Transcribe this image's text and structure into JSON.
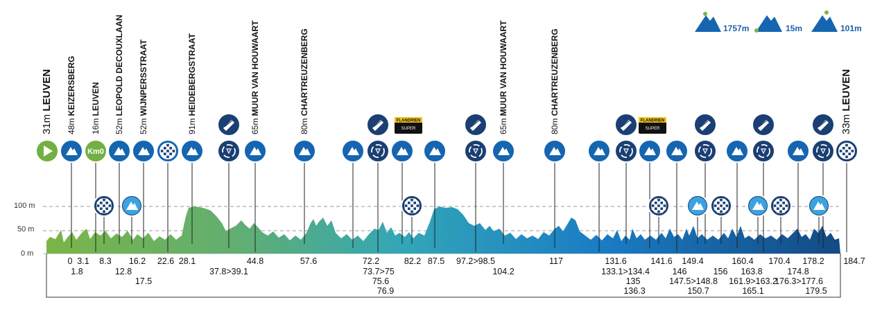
{
  "legend": [
    {
      "label": "1757m",
      "icon": "max-altitude-icon"
    },
    {
      "label": "15m",
      "icon": "min-altitude-icon"
    },
    {
      "label": "101m",
      "icon": "summit-altitude-icon"
    }
  ],
  "y_axis": [
    {
      "label": "100 m",
      "value": 100
    },
    {
      "label": "50 m",
      "value": 50
    },
    {
      "label": "0 m",
      "value": 0
    }
  ],
  "colors": {
    "green": "#72b043",
    "teal": "#2ea6b9",
    "blue": "#1a72c0",
    "navy": "#13436f",
    "icon_blue": "#1565b0",
    "icon_dark": "#1b3f73",
    "light_blue": "#3ba3e0"
  },
  "markers": [
    {
      "icon": "start-icon",
      "km": null,
      "alt": "31m",
      "name": "LEUVEN"
    },
    {
      "icon": "climb-icon",
      "km": 0,
      "alt": "48m",
      "name": "KEIZERSBERG"
    },
    {
      "icon": "km0-icon",
      "km": 1.8,
      "alt": "16m",
      "name": "LEUVEN",
      "badge": "Km0"
    },
    {
      "icon": "climb-icon",
      "km": 3.1,
      "alt": "52m",
      "name": "LEOPOLD DECOUXLAAN"
    },
    {
      "icon": "climb-icon",
      "km": 12.8,
      "alt": "52m",
      "name": "WIJNPERSSTRAAT"
    },
    {
      "icon": "cobbles-icon",
      "km": 17.5
    },
    {
      "icon": "climb-icon",
      "km": 28.1,
      "alt": "91m",
      "name": "HEIDEBERGSTRAAT"
    },
    {
      "icon": "recycle-icon",
      "km": 37.8
    },
    {
      "icon": "climb-icon",
      "km": 44.8,
      "alt": "65m",
      "name": "MUUR VAN HOUWAART"
    },
    {
      "icon": "climb-icon",
      "km": 57.6,
      "alt": "80m",
      "name": "CHARTREUZENBERG"
    },
    {
      "icon": "climb-icon",
      "km": 72.2
    },
    {
      "icon": "recycle-icon",
      "km": 73.7
    },
    {
      "icon": "climb-icon",
      "km": 75.6
    },
    {
      "icon": "climb-icon",
      "km": 87.5
    },
    {
      "icon": "recycle-icon",
      "km": 97.2
    },
    {
      "icon": "climb-icon",
      "km": 104.2,
      "alt": "65m",
      "name": "MUUR VAN HOUWAART"
    },
    {
      "icon": "climb-icon",
      "km": 117,
      "alt": "80m",
      "name": "CHARTREUZENBERG"
    },
    {
      "icon": "climb-icon",
      "km": 131.6
    },
    {
      "icon": "recycle-icon",
      "km": 133.1
    },
    {
      "icon": "climb-icon",
      "km": 136.3
    },
    {
      "icon": "climb-icon",
      "km": 146
    },
    {
      "icon": "recycle-icon",
      "km": 147.5
    },
    {
      "icon": "climb-icon",
      "km": 160.4
    },
    {
      "icon": "recycle-icon",
      "km": 161.9
    },
    {
      "icon": "climb-icon",
      "km": 174.8
    },
    {
      "icon": "recycle-icon",
      "km": 176.3
    },
    {
      "icon": "finish-icon",
      "km": 184.7,
      "alt": "33m",
      "name": "LEUVEN"
    }
  ],
  "sponsor_badge": "FLANDRIEN",
  "sponsor_sub": "SUPER",
  "km_labels": [
    "0",
    "3.1",
    "1.8",
    "8.3",
    "16.2",
    "12.8",
    "17.5",
    "22.6",
    "28.1",
    "37.8>39.1",
    "44.8",
    "57.6",
    "72.2",
    "73.7>75",
    "75.6",
    "76.9",
    "82.2",
    "87.5",
    "97.2>98.5",
    "104.2",
    "117",
    "131.6",
    "133.1>134.4",
    "135",
    "136.3",
    "141.6",
    "146",
    "149.4",
    "147.5>148.8",
    "150.7",
    "156",
    "160.4",
    "163.8",
    "161.9>163.2",
    "165.1",
    "170.4",
    "174.8",
    "176.3>177.6",
    "178.2",
    "179.5",
    "184.7"
  ]
}
